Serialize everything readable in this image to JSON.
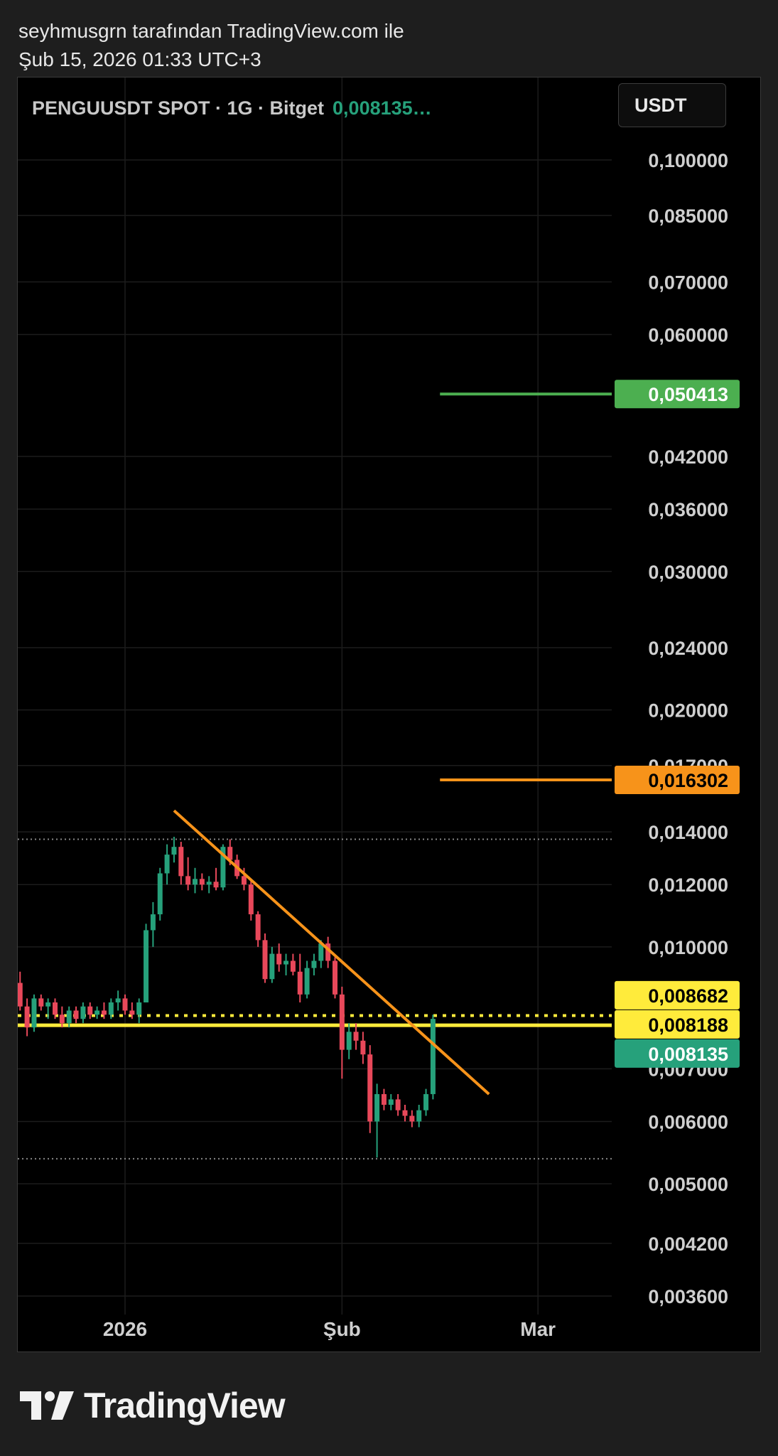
{
  "header": {
    "author_line": "seyhmusgrn tarafından TradingView.com ile",
    "date_line": "Şub 15, 2026 01:33 UTC+3"
  },
  "symbol": {
    "title": "PENGUUSDT SPOT · 1G · Bitget",
    "last_price": "0,008135…"
  },
  "currency_button": "USDT",
  "footer": {
    "brand": "TradingView"
  },
  "colors": {
    "background": "#000000",
    "up": "#26a17b",
    "down": "#e8485a",
    "trendline": "#f7931a",
    "target_green": "#4caf50",
    "yellow": "#ffeb3b"
  },
  "chart_data": {
    "type": "candlestick",
    "scale": "log",
    "price_axis": {
      "ticks": [
        {
          "label": "0,100000",
          "value": 0.1
        },
        {
          "label": "0,085000",
          "value": 0.085
        },
        {
          "label": "0,070000",
          "value": 0.07
        },
        {
          "label": "0,060000",
          "value": 0.06
        },
        {
          "label": "0,042000",
          "value": 0.042
        },
        {
          "label": "0,036000",
          "value": 0.036
        },
        {
          "label": "0,030000",
          "value": 0.03
        },
        {
          "label": "0,024000",
          "value": 0.024
        },
        {
          "label": "0,020000",
          "value": 0.02
        },
        {
          "label": "0,017000",
          "value": 0.017
        },
        {
          "label": "0,014000",
          "value": 0.014
        },
        {
          "label": "0,012000",
          "value": 0.012
        },
        {
          "label": "0,010000",
          "value": 0.01
        },
        {
          "label": "0,007000",
          "value": 0.007
        },
        {
          "label": "0,006000",
          "value": 0.006
        },
        {
          "label": "0,005000",
          "value": 0.005
        },
        {
          "label": "0,004200",
          "value": 0.0042
        },
        {
          "label": "0,003600",
          "value": 0.0036
        }
      ]
    },
    "time_axis": {
      "labels": [
        {
          "label": "2026",
          "date": "2026-01-01"
        },
        {
          "label": "Şub",
          "date": "2026-02-01"
        },
        {
          "label": "Mar",
          "date": "2026-03-01"
        }
      ]
    },
    "price_labels": [
      {
        "label": "0,050413",
        "value": 0.050413,
        "color": "#4caf50",
        "text_color": "#ffffff"
      },
      {
        "label": "0,016302",
        "value": 0.016302,
        "color": "#f7931a",
        "text_color": "#000000"
      },
      {
        "label": "0,008682",
        "value": 0.008682,
        "color": "#ffeb3b",
        "text_color": "#000000"
      },
      {
        "label": "0,008188",
        "value": 0.008188,
        "color": "#ffeb3b",
        "text_color": "#000000"
      },
      {
        "label": "0,008135",
        "value": 0.008135,
        "color": "#26a17b",
        "text_color": "#ffffff"
      }
    ],
    "horizontal_lines": [
      {
        "value": 0.050413,
        "color": "#4caf50",
        "style": "solid",
        "from_date": "2026-02-15"
      },
      {
        "value": 0.016302,
        "color": "#f7931a",
        "style": "solid",
        "from_date": "2026-02-15"
      },
      {
        "value": 0.0137,
        "color": "#888888",
        "style": "dotted",
        "from_date": "start"
      },
      {
        "value": 0.00818,
        "color": "#ffeb3b",
        "style": "dotted",
        "from_date": "start"
      },
      {
        "value": 0.00795,
        "color": "#ffeb3b",
        "style": "solid",
        "from_date": "start"
      },
      {
        "value": 0.00538,
        "color": "#888888",
        "style": "dotted",
        "from_date": "start"
      }
    ],
    "trendline": {
      "start": [
        "2026-01-08",
        0.0149
      ],
      "end": [
        "2026-02-22",
        0.0065
      ]
    },
    "candles": [
      {
        "date": "2025-12-17",
        "o": 0.009,
        "h": 0.0093,
        "l": 0.0083,
        "c": 0.0084
      },
      {
        "date": "2025-12-18",
        "o": 0.0084,
        "h": 0.0086,
        "l": 0.0077,
        "c": 0.0079
      },
      {
        "date": "2025-12-19",
        "o": 0.0079,
        "h": 0.0087,
        "l": 0.0078,
        "c": 0.0086
      },
      {
        "date": "2025-12-20",
        "o": 0.0086,
        "h": 0.0087,
        "l": 0.0083,
        "c": 0.0084
      },
      {
        "date": "2025-12-21",
        "o": 0.0084,
        "h": 0.0086,
        "l": 0.0081,
        "c": 0.0085
      },
      {
        "date": "2025-12-22",
        "o": 0.0085,
        "h": 0.0086,
        "l": 0.0081,
        "c": 0.0082
      },
      {
        "date": "2025-12-23",
        "o": 0.0082,
        "h": 0.0084,
        "l": 0.0079,
        "c": 0.008
      },
      {
        "date": "2025-12-24",
        "o": 0.008,
        "h": 0.0084,
        "l": 0.0079,
        "c": 0.0083
      },
      {
        "date": "2025-12-25",
        "o": 0.0083,
        "h": 0.0084,
        "l": 0.008,
        "c": 0.0081
      },
      {
        "date": "2025-12-26",
        "o": 0.0081,
        "h": 0.0085,
        "l": 0.008,
        "c": 0.0084
      },
      {
        "date": "2025-12-27",
        "o": 0.0084,
        "h": 0.0085,
        "l": 0.0081,
        "c": 0.0082
      },
      {
        "date": "2025-12-28",
        "o": 0.0082,
        "h": 0.0084,
        "l": 0.0081,
        "c": 0.0083
      },
      {
        "date": "2025-12-29",
        "o": 0.0083,
        "h": 0.0085,
        "l": 0.0081,
        "c": 0.0082
      },
      {
        "date": "2025-12-30",
        "o": 0.0082,
        "h": 0.0086,
        "l": 0.0081,
        "c": 0.0085
      },
      {
        "date": "2025-12-31",
        "o": 0.0085,
        "h": 0.0088,
        "l": 0.0083,
        "c": 0.0086
      },
      {
        "date": "2026-01-01",
        "o": 0.0086,
        "h": 0.0087,
        "l": 0.0082,
        "c": 0.0083
      },
      {
        "date": "2026-01-02",
        "o": 0.0083,
        "h": 0.0085,
        "l": 0.0081,
        "c": 0.0082
      },
      {
        "date": "2026-01-03",
        "o": 0.0082,
        "h": 0.0086,
        "l": 0.008,
        "c": 0.0085
      },
      {
        "date": "2026-01-04",
        "o": 0.0085,
        "h": 0.0107,
        "l": 0.0085,
        "c": 0.0105
      },
      {
        "date": "2026-01-05",
        "o": 0.0105,
        "h": 0.0114,
        "l": 0.01,
        "c": 0.011
      },
      {
        "date": "2026-01-06",
        "o": 0.011,
        "h": 0.0126,
        "l": 0.0108,
        "c": 0.0124
      },
      {
        "date": "2026-01-07",
        "o": 0.0124,
        "h": 0.0135,
        "l": 0.012,
        "c": 0.0131
      },
      {
        "date": "2026-01-08",
        "o": 0.0131,
        "h": 0.0138,
        "l": 0.0128,
        "c": 0.0134
      },
      {
        "date": "2026-01-09",
        "o": 0.0134,
        "h": 0.0136,
        "l": 0.012,
        "c": 0.0123
      },
      {
        "date": "2026-01-10",
        "o": 0.0123,
        "h": 0.013,
        "l": 0.0118,
        "c": 0.012
      },
      {
        "date": "2026-01-11",
        "o": 0.012,
        "h": 0.0126,
        "l": 0.0117,
        "c": 0.0122
      },
      {
        "date": "2026-01-12",
        "o": 0.0122,
        "h": 0.0124,
        "l": 0.0118,
        "c": 0.012
      },
      {
        "date": "2026-01-13",
        "o": 0.012,
        "h": 0.0123,
        "l": 0.0117,
        "c": 0.0121
      },
      {
        "date": "2026-01-14",
        "o": 0.0121,
        "h": 0.0126,
        "l": 0.0118,
        "c": 0.0119
      },
      {
        "date": "2026-01-15",
        "o": 0.0119,
        "h": 0.0135,
        "l": 0.0118,
        "c": 0.0134
      },
      {
        "date": "2026-01-16",
        "o": 0.0134,
        "h": 0.0137,
        "l": 0.0127,
        "c": 0.0129
      },
      {
        "date": "2026-01-17",
        "o": 0.0129,
        "h": 0.0131,
        "l": 0.0122,
        "c": 0.0123
      },
      {
        "date": "2026-01-18",
        "o": 0.0123,
        "h": 0.0126,
        "l": 0.0118,
        "c": 0.012
      },
      {
        "date": "2026-01-19",
        "o": 0.012,
        "h": 0.0122,
        "l": 0.0108,
        "c": 0.011
      },
      {
        "date": "2026-01-20",
        "o": 0.011,
        "h": 0.0111,
        "l": 0.01,
        "c": 0.0102
      },
      {
        "date": "2026-01-21",
        "o": 0.0102,
        "h": 0.0104,
        "l": 0.009,
        "c": 0.0091
      },
      {
        "date": "2026-01-22",
        "o": 0.0091,
        "h": 0.01,
        "l": 0.009,
        "c": 0.0098
      },
      {
        "date": "2026-01-23",
        "o": 0.0098,
        "h": 0.0101,
        "l": 0.0093,
        "c": 0.0095
      },
      {
        "date": "2026-01-24",
        "o": 0.0095,
        "h": 0.0098,
        "l": 0.0092,
        "c": 0.0096
      },
      {
        "date": "2026-01-25",
        "o": 0.0096,
        "h": 0.0098,
        "l": 0.0092,
        "c": 0.0093
      },
      {
        "date": "2026-01-26",
        "o": 0.0093,
        "h": 0.0098,
        "l": 0.0085,
        "c": 0.0087
      },
      {
        "date": "2026-01-27",
        "o": 0.0087,
        "h": 0.0096,
        "l": 0.0086,
        "c": 0.0094
      },
      {
        "date": "2026-01-28",
        "o": 0.0094,
        "h": 0.0098,
        "l": 0.0092,
        "c": 0.0096
      },
      {
        "date": "2026-01-29",
        "o": 0.0096,
        "h": 0.0102,
        "l": 0.0094,
        "c": 0.0101
      },
      {
        "date": "2026-01-30",
        "o": 0.0101,
        "h": 0.0103,
        "l": 0.0094,
        "c": 0.0096
      },
      {
        "date": "2026-01-31",
        "o": 0.0096,
        "h": 0.0097,
        "l": 0.0086,
        "c": 0.0087
      },
      {
        "date": "2026-02-01",
        "o": 0.0087,
        "h": 0.0089,
        "l": 0.0068,
        "c": 0.0074
      },
      {
        "date": "2026-02-02",
        "o": 0.0074,
        "h": 0.008,
        "l": 0.0072,
        "c": 0.0078
      },
      {
        "date": "2026-02-03",
        "o": 0.0078,
        "h": 0.008,
        "l": 0.0074,
        "c": 0.0076
      },
      {
        "date": "2026-02-04",
        "o": 0.0076,
        "h": 0.0078,
        "l": 0.0071,
        "c": 0.0073
      },
      {
        "date": "2026-02-05",
        "o": 0.0073,
        "h": 0.0075,
        "l": 0.0058,
        "c": 0.006
      },
      {
        "date": "2026-02-06",
        "o": 0.006,
        "h": 0.0067,
        "l": 0.0054,
        "c": 0.0065
      },
      {
        "date": "2026-02-07",
        "o": 0.0065,
        "h": 0.0066,
        "l": 0.0062,
        "c": 0.0063
      },
      {
        "date": "2026-02-08",
        "o": 0.0063,
        "h": 0.0065,
        "l": 0.0062,
        "c": 0.0064
      },
      {
        "date": "2026-02-09",
        "o": 0.0064,
        "h": 0.0065,
        "l": 0.0061,
        "c": 0.0062
      },
      {
        "date": "2026-02-10",
        "o": 0.0062,
        "h": 0.0063,
        "l": 0.006,
        "c": 0.0061
      },
      {
        "date": "2026-02-11",
        "o": 0.0061,
        "h": 0.0062,
        "l": 0.0059,
        "c": 0.006
      },
      {
        "date": "2026-02-12",
        "o": 0.006,
        "h": 0.0063,
        "l": 0.0059,
        "c": 0.0062
      },
      {
        "date": "2026-02-13",
        "o": 0.0062,
        "h": 0.0066,
        "l": 0.0061,
        "c": 0.0065
      },
      {
        "date": "2026-02-14",
        "o": 0.0065,
        "h": 0.0082,
        "l": 0.0064,
        "c": 0.0081
      }
    ]
  }
}
